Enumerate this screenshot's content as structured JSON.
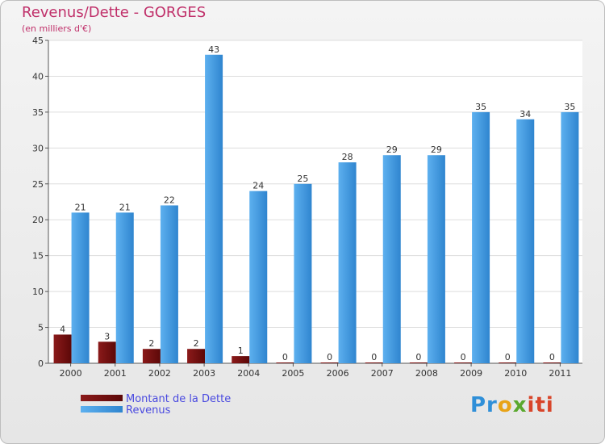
{
  "title": "Revenus/Dette - GORGES",
  "subtitle": "(en milliers d'€)",
  "logo": {
    "p1": "Pr",
    "p2": "o",
    "p3": "x",
    "p4": "iti"
  },
  "colors": {
    "dette": "#7a0f0f",
    "revenus": "#3f9ae0"
  },
  "chart_data": {
    "type": "bar",
    "title": "Revenus/Dette - GORGES",
    "ylabel": "(en milliers d'€)",
    "xlabel": "",
    "ylim": [
      0,
      45
    ],
    "yticks": [
      0,
      5,
      10,
      15,
      20,
      25,
      30,
      35,
      40,
      45
    ],
    "grid": true,
    "legend_position": "bottom-left",
    "categories": [
      "2000",
      "2001",
      "2002",
      "2003",
      "2004",
      "2005",
      "2006",
      "2007",
      "2008",
      "2009",
      "2010",
      "2011"
    ],
    "series": [
      {
        "name": "Montant de la Dette",
        "values": [
          4,
          3,
          2,
          2,
          1,
          0,
          0,
          0,
          0,
          0,
          0,
          0
        ]
      },
      {
        "name": "Revenus",
        "values": [
          21,
          21,
          22,
          43,
          24,
          25,
          28,
          29,
          29,
          35,
          34,
          35
        ]
      }
    ]
  }
}
